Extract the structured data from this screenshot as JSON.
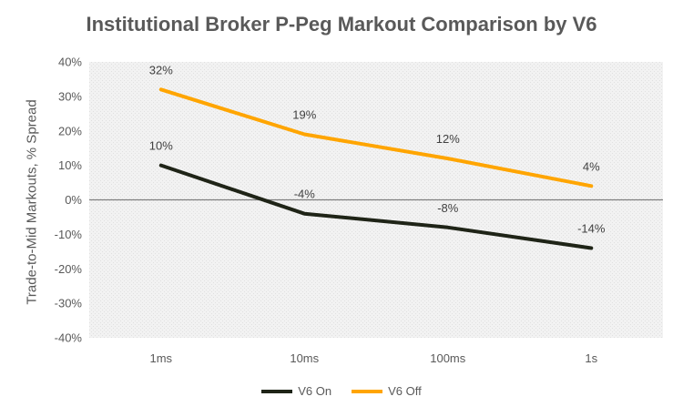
{
  "chart_data": {
    "type": "line",
    "title": "Institutional Broker P-Peg Markout Comparison by V6",
    "xlabel": "",
    "ylabel": "Trade-to-Mid Markouts, % Spread",
    "categories": [
      "1ms",
      "10ms",
      "100ms",
      "1s"
    ],
    "ylim": [
      -40,
      40
    ],
    "yticks": [
      40,
      30,
      20,
      10,
      0,
      -10,
      -20,
      -30,
      -40
    ],
    "ytick_labels": [
      "40%",
      "30%",
      "20%",
      "10%",
      "0%",
      "-10%",
      "-20%",
      "-30%",
      "-40%"
    ],
    "grid": false,
    "legend": "bottom",
    "series": [
      {
        "name": "V6 On",
        "color": "#1f2417",
        "values": [
          10,
          -4,
          -8,
          -14
        ],
        "labels": [
          "10%",
          "-4%",
          "-8%",
          "-14%"
        ]
      },
      {
        "name": "V6 Off",
        "color": "#ffa500",
        "values": [
          32,
          19,
          12,
          4
        ],
        "labels": [
          "32%",
          "19%",
          "12%",
          "4%"
        ]
      }
    ]
  }
}
